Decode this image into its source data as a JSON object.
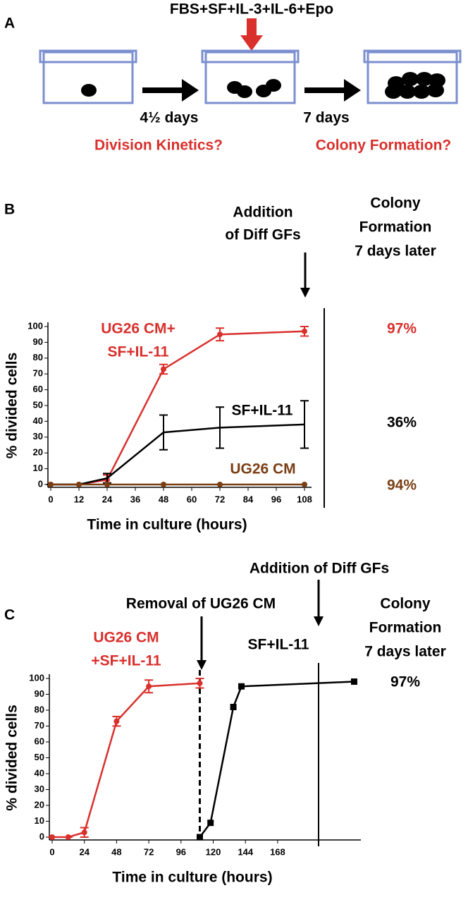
{
  "panel_a": {
    "label": "A",
    "treatment": "FBS+SF+IL-3+IL-6+Epo",
    "step1_time": "4½ days",
    "step1_question": "Division Kinetics?",
    "step2_time": "7 days",
    "step2_question": "Colony Formation?"
  },
  "chart_data": [
    {
      "type": "line",
      "panel": "B",
      "xlabel": "Time in culture (hours)",
      "ylabel": "% divided cells",
      "xlim": [
        0,
        111
      ],
      "xticks": [
        0,
        12,
        24,
        36,
        48,
        60,
        72,
        84,
        96,
        108
      ],
      "ylim": [
        0,
        100
      ],
      "yticks": [
        0,
        10,
        20,
        30,
        40,
        50,
        60,
        70,
        80,
        90,
        100
      ],
      "annotations": {
        "addition": [
          "Addition",
          "of Diff GFs"
        ],
        "colony_header": [
          "Colony",
          "Formation",
          "7 days later"
        ]
      },
      "series": [
        {
          "label": [
            "UG26 CM+",
            "SF+IL-11"
          ],
          "color": "#d9302c",
          "marker": "circle",
          "x": [
            0,
            12,
            24,
            48,
            72,
            108
          ],
          "values": [
            0,
            0,
            3,
            73,
            95,
            97
          ],
          "errors": [
            0,
            0,
            3,
            3,
            4,
            3
          ],
          "outcome": "97%"
        },
        {
          "label": [
            "SF+IL-11"
          ],
          "color": "#000000",
          "marker": "none",
          "x": [
            0,
            12,
            24,
            48,
            72,
            108
          ],
          "values": [
            0,
            0,
            4,
            33,
            36,
            38
          ],
          "errors": [
            0,
            0,
            3,
            11,
            13,
            15
          ],
          "outcome": "36%"
        },
        {
          "label": [
            "UG26 CM"
          ],
          "color": "#7b3f14",
          "marker": "circle",
          "x": [
            0,
            12,
            24,
            48,
            72,
            108
          ],
          "values": [
            0,
            0,
            0,
            0,
            0,
            0
          ],
          "outcome": "94%"
        }
      ]
    },
    {
      "type": "line",
      "panel": "C",
      "xlabel": "Time in culture (hours)",
      "ylabel": "% divided cells",
      "xlim": [
        0,
        230
      ],
      "xticks": [
        0,
        24,
        48,
        72,
        96,
        120,
        144,
        168
      ],
      "ylim": [
        0,
        100
      ],
      "yticks": [
        0,
        10,
        20,
        30,
        40,
        50,
        60,
        70,
        80,
        90,
        100
      ],
      "annotations": {
        "addition": [
          "Addition of Diff GFs"
        ],
        "removal": [
          "Removal of UG26 CM"
        ],
        "colony_header": [
          "Colony",
          "Formation",
          "7 days later"
        ]
      },
      "removal_time": 110,
      "series": [
        {
          "label": [
            "UG26 CM",
            "+SF+IL-11"
          ],
          "color": "#d9302c",
          "marker": "circle",
          "x": [
            0,
            12,
            24,
            48,
            72,
            110
          ],
          "values": [
            0,
            0,
            3,
            73,
            95,
            97
          ],
          "errors": [
            0,
            0,
            3,
            3,
            4,
            3
          ]
        },
        {
          "label": [
            "SF+IL-11"
          ],
          "color": "#000000",
          "marker": "square",
          "x": [
            110,
            118,
            135,
            141,
            225
          ],
          "values": [
            0,
            9,
            82,
            95,
            98
          ],
          "outcome": "97%"
        }
      ]
    }
  ]
}
